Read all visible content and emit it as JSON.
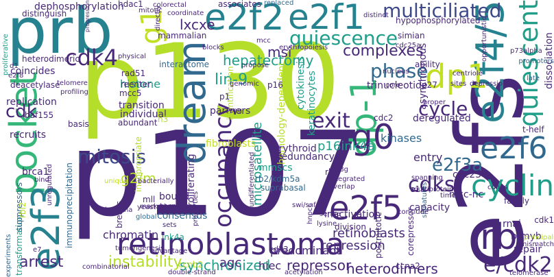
{
  "palette": {
    "lime": "#b5de2b",
    "yellowgreen": "#c2df23",
    "green": "#35b779",
    "lightgreen": "#6ece58",
    "teal": "#1f9e89",
    "cyan": "#26828e",
    "blue": "#31688e",
    "indigo": "#3e4989",
    "purple": "#482878",
    "dark": "#440154"
  },
  "words": [
    {
      "text": "p130"
    },
    {
      "text": "p107"
    },
    {
      "text": "e2fs"
    },
    {
      "text": "prb"
    },
    {
      "text": "retinoblastoma"
    },
    {
      "text": "e2f2"
    },
    {
      "text": "e2f1"
    },
    {
      "text": "e2f4/5"
    },
    {
      "text": "pocket"
    },
    {
      "text": "e2f3"
    },
    {
      "text": "cdk4"
    },
    {
      "text": "g1"
    },
    {
      "text": "dream"
    },
    {
      "text": "occupancy"
    },
    {
      "text": "dp1"
    },
    {
      "text": "dp-1"
    },
    {
      "text": "g0"
    },
    {
      "text": "rb"
    },
    {
      "text": "e2f6"
    },
    {
      "text": "e2f5"
    },
    {
      "text": "cyclin"
    },
    {
      "text": "quiescent"
    },
    {
      "text": "multiciliated"
    },
    {
      "text": "quiescence"
    },
    {
      "text": "mitosis"
    },
    {
      "text": "phase"
    },
    {
      "text": "cycle"
    },
    {
      "text": "exit"
    },
    {
      "text": "e/cdk2"
    },
    {
      "text": "cdks"
    },
    {
      "text": "e2f3a"
    },
    {
      "text": "complexes"
    },
    {
      "text": "cdk"
    },
    {
      "text": "instability"
    },
    {
      "text": "synchronized"
    },
    {
      "text": "heterodimers"
    },
    {
      "text": "repression"
    },
    {
      "text": "repressor"
    },
    {
      "text": "arrest"
    },
    {
      "text": "agc"
    },
    {
      "text": "g2/m"
    },
    {
      "text": "hepatectomy"
    },
    {
      "text": "lin-9"
    },
    {
      "text": "msi"
    },
    {
      "text": "lxcxe"
    },
    {
      "text": "dephosphorylation"
    },
    {
      "text": "mammalian"
    },
    {
      "text": "microsatellite"
    },
    {
      "text": "p16ink4a"
    },
    {
      "text": "chromatin"
    },
    {
      "text": "histone"
    },
    {
      "text": "transition"
    },
    {
      "text": "individual"
    },
    {
      "text": "interactome"
    },
    {
      "text": "homology-dependent"
    },
    {
      "text": "cytokinesis"
    },
    {
      "text": "keratinocytes"
    },
    {
      "text": "entry"
    },
    {
      "text": "kinases"
    },
    {
      "text": "deregulated"
    },
    {
      "text": "family"
    },
    {
      "text": "retinoblasts"
    },
    {
      "text": "predominant"
    },
    {
      "text": "b-myb"
    },
    {
      "text": "rnai"
    },
    {
      "text": "repair"
    },
    {
      "text": "hiec"
    },
    {
      "text": "erythroid"
    },
    {
      "text": "redundancy"
    },
    {
      "text": "fibroblasts"
    },
    {
      "text": "proliferating"
    },
    {
      "text": "consensus"
    },
    {
      "text": "terminus"
    },
    {
      "text": "bound"
    },
    {
      "text": "abundant"
    },
    {
      "text": "partners"
    },
    {
      "text": "immunoprecipitation"
    },
    {
      "text": "transformation"
    },
    {
      "text": "suppressors"
    },
    {
      "text": "brca1"
    },
    {
      "text": "basis"
    },
    {
      "text": "replication"
    },
    {
      "text": "coincides"
    },
    {
      "text": "deacetylase"
    },
    {
      "text": "recruits"
    },
    {
      "text": "heterodimeric"
    },
    {
      "text": "distinguish"
    },
    {
      "text": "progression"
    },
    {
      "text": "proliferative"
    },
    {
      "text": "hdac1"
    },
    {
      "text": "dissociation"
    },
    {
      "text": "simian"
    },
    {
      "text": "hypophosphorylated"
    },
    {
      "text": "associates"
    },
    {
      "text": "replaced"
    },
    {
      "text": "distinct"
    },
    {
      "text": "trinucleotide"
    },
    {
      "text": "asynchronous"
    },
    {
      "text": "identification"
    },
    {
      "text": "rbf"
    },
    {
      "text": "inactivation"
    },
    {
      "text": "division"
    },
    {
      "text": "capacity"
    },
    {
      "text": "msc-nc"
    },
    {
      "text": "cdc25c"
    },
    {
      "text": "mmscs"
    },
    {
      "text": "suprabasal"
    },
    {
      "text": "rb2/kdm5a"
    },
    {
      "text": "cdk3"
    },
    {
      "text": "ccnb2"
    },
    {
      "text": "ink4a"
    },
    {
      "text": "mll"
    },
    {
      "text": "breaks"
    },
    {
      "text": "corepressor"
    },
    {
      "text": "cdk1"
    },
    {
      "text": "e1a"
    },
    {
      "text": "cdc2"
    },
    {
      "text": "p27"
    },
    {
      "text": "ability"
    },
    {
      "text": "rad51"
    },
    {
      "text": "mcc5"
    },
    {
      "text": "baf155"
    },
    {
      "text": "e2f8"
    },
    {
      "text": "d1"
    },
    {
      "text": "h3"
    },
    {
      "text": "rbl2"
    },
    {
      "text": "e7"
    },
    {
      "text": "inappropriate"
    },
    {
      "text": "reenter"
    },
    {
      "text": "t-helf"
    },
    {
      "text": "ccna2"
    },
    {
      "text": "postmitotic"
    },
    {
      "text": "combinatorial"
    },
    {
      "text": "double-strand"
    },
    {
      "text": "tumorigenesis"
    },
    {
      "text": "advantage"
    },
    {
      "text": "telomerase"
    },
    {
      "text": "mismatch"
    },
    {
      "text": "principal"
    },
    {
      "text": "late"
    },
    {
      "text": "centriole"
    },
    {
      "text": "sites"
    },
    {
      "text": "depression"
    },
    {
      "text": "promoters"
    },
    {
      "text": "p73alpha"
    },
    {
      "text": "opportunistic"
    },
    {
      "text": "signatures"
    },
    {
      "text": "spanning"
    },
    {
      "text": "multiprotein"
    },
    {
      "text": "overlap"
    },
    {
      "text": "integrated"
    },
    {
      "text": "t98g"
    },
    {
      "text": "swi/snf"
    },
    {
      "text": "serine"
    },
    {
      "text": "lysine"
    },
    {
      "text": "conclude"
    },
    {
      "text": "timely"
    },
    {
      "text": "cdnas"
    },
    {
      "text": "hnpcc"
    },
    {
      "text": "undifferentiated"
    },
    {
      "text": "properties"
    },
    {
      "text": "sets"
    },
    {
      "text": "yeast"
    },
    {
      "text": "global"
    },
    {
      "text": "marked"
    },
    {
      "text": "c/ebpalpha"
    },
    {
      "text": "bind"
    },
    {
      "text": "experiments"
    },
    {
      "text": "unregulated"
    },
    {
      "text": "telomere"
    },
    {
      "text": "profiling"
    },
    {
      "text": "unique"
    },
    {
      "text": "bacterially"
    },
    {
      "text": "genomic"
    },
    {
      "text": "propose"
    },
    {
      "text": "cag"
    },
    {
      "text": "physical"
    },
    {
      "text": "blocks"
    },
    {
      "text": "mcc"
    },
    {
      "text": "erythropoiesis"
    },
    {
      "text": "nucleus"
    },
    {
      "text": "core"
    },
    {
      "text": "proper"
    },
    {
      "text": "coordinate"
    },
    {
      "text": "colorectal"
    },
    {
      "text": "mitotic"
    },
    {
      "text": "directly"
    },
    {
      "text": "acetylation"
    },
    {
      "text": "p1"
    },
    {
      "text": "p16"
    },
    {
      "text": "cdc25a"
    }
  ]
}
